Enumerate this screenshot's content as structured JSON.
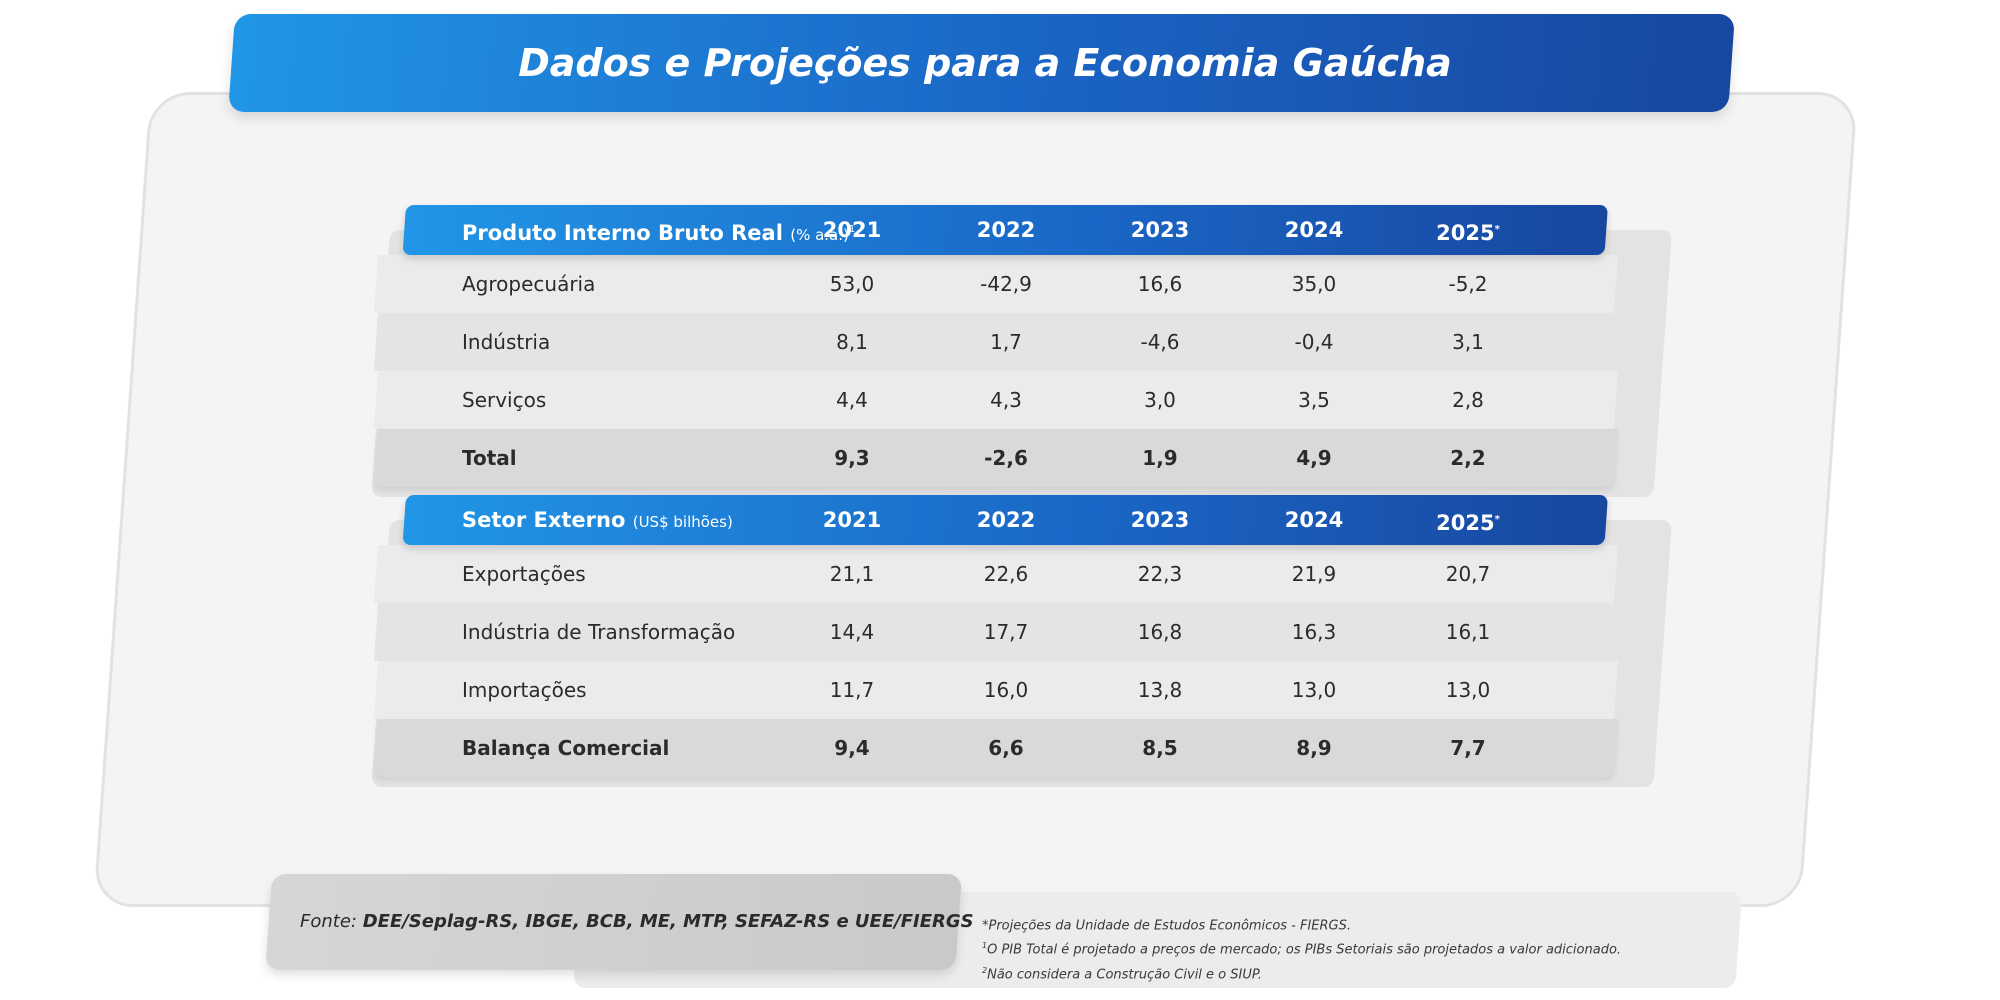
{
  "title": "Dados e Projeções para a Economia Gaúcha",
  "years": [
    "2021",
    "2022",
    "2023",
    "2024",
    "2025"
  ],
  "year_projection_mark": "*",
  "table_pib": {
    "label": "Produto Interno Bruto Real",
    "unit": "(% a.a.)",
    "footnote_mark": "1",
    "rows": [
      {
        "label": "Agropecuária",
        "values": [
          "53,0",
          "-42,9",
          "16,6",
          "35,0",
          "-5,2"
        ],
        "bold": false
      },
      {
        "label": "Indústria",
        "values": [
          "8,1",
          "1,7",
          "-4,6",
          "-0,4",
          "3,1"
        ],
        "bold": false
      },
      {
        "label": "Serviços",
        "values": [
          "4,4",
          "4,3",
          "3,0",
          "3,5",
          "2,8"
        ],
        "bold": false
      },
      {
        "label": "Total",
        "values": [
          "9,3",
          "-2,6",
          "1,9",
          "4,9",
          "2,2"
        ],
        "bold": true
      }
    ]
  },
  "table_ext": {
    "label": "Setor Externo",
    "unit": "(US$ bilhões)",
    "rows": [
      {
        "label": "Exportações",
        "values": [
          "21,1",
          "22,6",
          "22,3",
          "21,9",
          "20,7"
        ],
        "bold": false
      },
      {
        "label": "Indústria de Transformação",
        "values": [
          "14,4",
          "17,7",
          "16,8",
          "16,3",
          "16,1"
        ],
        "bold": false
      },
      {
        "label": "Importações",
        "values": [
          "11,7",
          "16,0",
          "13,8",
          "13,0",
          "13,0"
        ],
        "bold": false
      },
      {
        "label": "Balança Comercial",
        "values": [
          "9,4",
          "6,6",
          "8,5",
          "8,9",
          "7,7"
        ],
        "bold": true
      }
    ]
  },
  "source": {
    "prefix": "Fonte: ",
    "text": "DEE/Seplag-RS, IBGE, BCB, ME, MTP, SEFAZ-RS e UEE/FIERGS"
  },
  "notes": [
    {
      "mark": "",
      "text": "*Projeções da Unidade de Estudos Econômicos - FIERGS."
    },
    {
      "mark": "1",
      "text": "O PIB Total é projetado a preços de mercado; os PIBs Setoriais são projetados a valor adicionado."
    },
    {
      "mark": "2",
      "text": "Não considera a Construção Civil e o SIUP."
    }
  ],
  "colors": {
    "header_start": "#2196e6",
    "header_end": "#1847a0",
    "panel": "#f4f4f4"
  }
}
